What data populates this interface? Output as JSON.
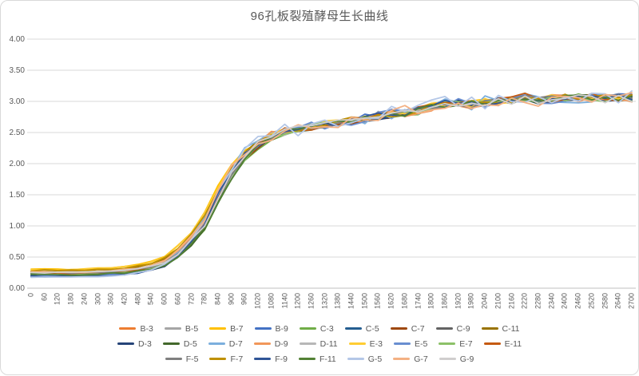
{
  "chart": {
    "title": "96孔板裂殖酵母生长曲线"
  },
  "colors": {
    "background": "#FFFFFF",
    "border": "#D9D9D9",
    "gridline": "#D9D9D9",
    "axis_line": "#BFBFBF",
    "axis_text": "#595959",
    "legend_text": "#595959",
    "title_text": "#595959"
  },
  "chart_data": {
    "type": "line",
    "title": "96孔板裂殖酵母生长曲线",
    "xlabel": "",
    "ylabel": "",
    "ylim": [
      0,
      4
    ],
    "y_ticks": [
      "4.00",
      "3.50",
      "3.00",
      "2.50",
      "2.00",
      "1.50",
      "1.00",
      "0.50",
      "0.00"
    ],
    "grid": true,
    "legend_position": "bottom",
    "categories": [
      0,
      60,
      120,
      180,
      240,
      300,
      360,
      420,
      480,
      540,
      600,
      660,
      720,
      780,
      840,
      900,
      960,
      1020,
      1080,
      1140,
      1200,
      1260,
      1320,
      1380,
      1440,
      1500,
      1560,
      1620,
      1680,
      1740,
      1800,
      1860,
      1920,
      1980,
      2040,
      2100,
      2160,
      2220,
      2280,
      2340,
      2400,
      2460,
      2520,
      2580,
      2640,
      2700
    ],
    "base_curve": [
      0.23,
      0.23,
      0.23,
      0.23,
      0.235,
      0.24,
      0.25,
      0.265,
      0.29,
      0.33,
      0.4,
      0.55,
      0.78,
      1.03,
      1.5,
      1.88,
      2.15,
      2.32,
      2.45,
      2.52,
      2.56,
      2.6,
      2.63,
      2.66,
      2.69,
      2.72,
      2.76,
      2.8,
      2.82,
      2.85,
      2.91,
      2.96,
      2.97,
      2.95,
      2.99,
      3.0,
      3.02,
      3.07,
      3.0,
      3.04,
      3.07,
      3.06,
      3.07,
      3.04,
      3.07,
      3.05
    ],
    "series": [
      {
        "name": "B-3",
        "color": "#ED7D31",
        "lag_offset": 0.01,
        "time_shift": 0,
        "noise_amp": 0.05,
        "seed": 11
      },
      {
        "name": "B-5",
        "color": "#A5A5A5",
        "lag_offset": 0.02,
        "time_shift": 5,
        "noise_amp": 0.045,
        "seed": 22
      },
      {
        "name": "B-7",
        "color": "#FFC000",
        "lag_offset": 0.075,
        "time_shift": 20,
        "noise_amp": 0.045,
        "seed": 33
      },
      {
        "name": "B-9",
        "color": "#4472C4",
        "lag_offset": -0.035,
        "time_shift": 8,
        "noise_amp": 0.06,
        "seed": 44
      },
      {
        "name": "C-3",
        "color": "#70AD47",
        "lag_offset": 0.0,
        "time_shift": -18,
        "noise_amp": 0.045,
        "seed": 55
      },
      {
        "name": "C-5",
        "color": "#255E91",
        "lag_offset": -0.03,
        "time_shift": -5,
        "noise_amp": 0.05,
        "seed": 66
      },
      {
        "name": "C-7",
        "color": "#9E480E",
        "lag_offset": 0.01,
        "time_shift": -10,
        "noise_amp": 0.05,
        "seed": 77
      },
      {
        "name": "C-9",
        "color": "#636363",
        "lag_offset": 0.02,
        "time_shift": -5,
        "noise_amp": 0.04,
        "seed": 88
      },
      {
        "name": "C-11",
        "color": "#997300",
        "lag_offset": 0.05,
        "time_shift": 12,
        "noise_amp": 0.04,
        "seed": 99
      },
      {
        "name": "D-3",
        "color": "#264478",
        "lag_offset": -0.04,
        "time_shift": -8,
        "noise_amp": 0.05,
        "seed": 110
      },
      {
        "name": "D-5",
        "color": "#43682B",
        "lag_offset": -0.01,
        "time_shift": -20,
        "noise_amp": 0.045,
        "seed": 121
      },
      {
        "name": "D-7",
        "color": "#7CAFDD",
        "lag_offset": -0.05,
        "time_shift": 15,
        "noise_amp": 0.09,
        "seed": 132
      },
      {
        "name": "D-9",
        "color": "#F1975A",
        "lag_offset": 0.03,
        "time_shift": 5,
        "noise_amp": 0.06,
        "seed": 143
      },
      {
        "name": "D-11",
        "color": "#B7B7B7",
        "lag_offset": 0.03,
        "time_shift": -12,
        "noise_amp": 0.045,
        "seed": 154
      },
      {
        "name": "E-3",
        "color": "#FFCD33",
        "lag_offset": 0.065,
        "time_shift": 22,
        "noise_amp": 0.045,
        "seed": 165
      },
      {
        "name": "E-5",
        "color": "#698ED0",
        "lag_offset": -0.03,
        "time_shift": 3,
        "noise_amp": 0.07,
        "seed": 176
      },
      {
        "name": "E-7",
        "color": "#8CC168",
        "lag_offset": 0.0,
        "time_shift": -15,
        "noise_amp": 0.045,
        "seed": 187
      },
      {
        "name": "E-11",
        "color": "#C55A11",
        "lag_offset": 0.01,
        "time_shift": -3,
        "noise_amp": 0.06,
        "seed": 198
      },
      {
        "name": "F-5",
        "color": "#7F7F7F",
        "lag_offset": 0.02,
        "time_shift": -8,
        "noise_amp": 0.045,
        "seed": 209
      },
      {
        "name": "F-7",
        "color": "#BF9000",
        "lag_offset": 0.055,
        "time_shift": 15,
        "noise_amp": 0.045,
        "seed": 220
      },
      {
        "name": "F-9",
        "color": "#2F5597",
        "lag_offset": -0.04,
        "time_shift": 0,
        "noise_amp": 0.05,
        "seed": 231
      },
      {
        "name": "F-11",
        "color": "#538135",
        "lag_offset": -0.01,
        "time_shift": -16,
        "noise_amp": 0.045,
        "seed": 242
      },
      {
        "name": "G-5",
        "color": "#B4C7E7",
        "lag_offset": -0.05,
        "time_shift": 10,
        "noise_amp": 0.12,
        "seed": 253
      },
      {
        "name": "G-7",
        "color": "#F4B183",
        "lag_offset": 0.03,
        "time_shift": 8,
        "noise_amp": 0.1,
        "seed": 264
      },
      {
        "name": "G-9",
        "color": "#D0CECE",
        "lag_offset": 0.02,
        "time_shift": -5,
        "noise_amp": 0.055,
        "seed": 275
      }
    ],
    "legend_rows": [
      [
        "B-3",
        "B-5",
        "B-7",
        "B-9",
        "C-3",
        "C-5",
        "C-7",
        "C-9",
        "C-11"
      ],
      [
        "D-3",
        "D-5",
        "D-7",
        "D-9",
        "D-11",
        "E-3",
        "E-5",
        "E-7",
        "E-11"
      ],
      [
        "F-5",
        "F-7",
        "F-9",
        "F-11",
        "G-5",
        "G-7",
        "G-9"
      ]
    ]
  }
}
